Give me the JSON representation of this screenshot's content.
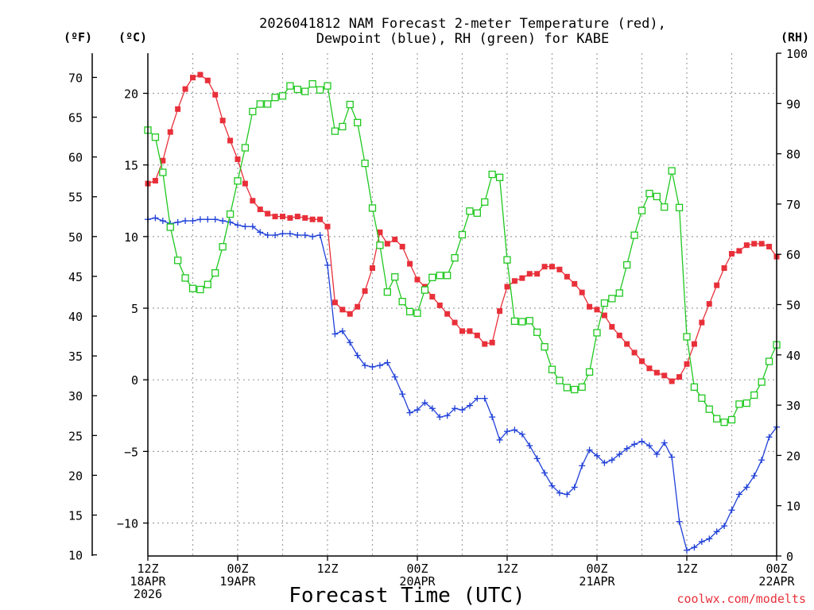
{
  "chart_data": {
    "type": "line",
    "title_line1": "2026041812 NAM Forecast 2-meter Temperature (red),",
    "title_line2": "Dewpoint (blue), RH (green) for KABE",
    "unit_f": "(ºF)",
    "unit_c": "(ºC)",
    "unit_rh": "(RH)",
    "xlabel": "Forecast Time (UTC)",
    "credit": "coolwx.com/modelts",
    "x_range_hours": [
      0,
      84
    ],
    "ylim_c": [
      -12.3,
      22.8
    ],
    "ylim_rh": [
      0,
      100
    ],
    "grid": true,
    "fahrenheit_ticks": [
      "10",
      "15",
      "20",
      "25",
      "30",
      "35",
      "40",
      "45",
      "50",
      "55",
      "60",
      "65",
      "70"
    ],
    "celsius_ticks": [
      "−10",
      "−5",
      "0",
      "5",
      "10",
      "15",
      "20"
    ],
    "rh_ticks": [
      "0",
      "10",
      "20",
      "30",
      "40",
      "50",
      "60",
      "70",
      "80",
      "90",
      "100"
    ],
    "x_ticks": [
      {
        "hour": 0,
        "lines": [
          "12Z",
          "18APR",
          "2026"
        ]
      },
      {
        "hour": 12,
        "lines": [
          "00Z",
          "19APR"
        ]
      },
      {
        "hour": 24,
        "lines": [
          "12Z"
        ]
      },
      {
        "hour": 36,
        "lines": [
          "00Z",
          "20APR"
        ]
      },
      {
        "hour": 48,
        "lines": [
          "12Z"
        ]
      },
      {
        "hour": 60,
        "lines": [
          "00Z",
          "21APR"
        ]
      },
      {
        "hour": 72,
        "lines": [
          "12Z"
        ]
      },
      {
        "hour": 84,
        "lines": [
          "00Z",
          "22APR"
        ]
      }
    ],
    "colors": {
      "temperature": "#e8303a",
      "dewpoint": "#2040d8",
      "rh": "#20c820",
      "grid": "#a0a0a0"
    },
    "series": [
      {
        "name": "Temperature (°C)",
        "key": "temperature",
        "marker": "filled-square",
        "x": [
          0,
          1,
          2,
          3,
          4,
          5,
          6,
          7,
          8,
          9,
          10,
          11,
          12,
          13,
          14,
          15,
          16,
          17,
          18,
          19,
          20,
          21,
          22,
          23,
          24,
          25,
          26,
          27,
          28,
          29,
          30,
          31,
          32,
          33,
          34,
          35,
          36,
          37,
          38,
          39,
          40,
          41,
          42,
          43,
          44,
          45,
          46,
          47,
          48,
          49,
          50,
          51,
          52,
          53,
          54,
          55,
          56,
          57,
          58,
          59,
          60,
          61,
          62,
          63,
          64,
          65,
          66,
          67,
          68,
          69,
          70,
          71,
          72,
          73,
          74,
          75,
          76,
          77,
          78,
          79,
          80,
          81,
          82,
          83,
          84
        ],
        "y": [
          13.7,
          13.9,
          15.3,
          17.3,
          18.9,
          20.3,
          21.1,
          21.3,
          20.9,
          19.9,
          18.1,
          16.7,
          15.4,
          13.7,
          12.5,
          11.9,
          11.6,
          11.4,
          11.4,
          11.3,
          11.4,
          11.3,
          11.2,
          11.2,
          10.7,
          5.4,
          4.9,
          4.6,
          5.1,
          6.2,
          7.8,
          10.3,
          9.5,
          9.8,
          9.3,
          8.1,
          7.0,
          6.5,
          5.8,
          5.2,
          4.6,
          4.0,
          3.4,
          3.4,
          3.1,
          2.5,
          2.6,
          4.8,
          6.5,
          6.9,
          7.1,
          7.4,
          7.4,
          7.9,
          7.9,
          7.7,
          7.2,
          6.7,
          6.1,
          5.1,
          4.9,
          4.5,
          3.7,
          3.1,
          2.5,
          1.9,
          1.3,
          0.8,
          0.5,
          0.3,
          -0.1,
          0.2,
          1.1,
          2.5,
          4.0,
          5.3,
          6.6,
          7.8,
          8.8,
          9.0,
          9.4,
          9.5,
          9.5,
          9.3,
          8.6
        ]
      },
      {
        "name": "Dewpoint (°C)",
        "key": "dewpoint",
        "marker": "plus",
        "x": [
          0,
          1,
          2,
          3,
          4,
          5,
          6,
          7,
          8,
          9,
          10,
          11,
          12,
          13,
          14,
          15,
          16,
          17,
          18,
          19,
          20,
          21,
          22,
          23,
          24,
          25,
          26,
          27,
          28,
          29,
          30,
          31,
          32,
          33,
          34,
          35,
          36,
          37,
          38,
          39,
          40,
          41,
          42,
          43,
          44,
          45,
          46,
          47,
          48,
          49,
          50,
          51,
          52,
          53,
          54,
          55,
          56,
          57,
          58,
          59,
          60,
          61,
          62,
          63,
          64,
          65,
          66,
          67,
          68,
          69,
          70,
          71,
          72,
          73,
          74,
          75,
          76,
          77,
          78,
          79,
          80,
          81,
          82,
          83,
          84
        ],
        "y": [
          11.2,
          11.3,
          11.1,
          10.9,
          11.0,
          11.1,
          11.1,
          11.2,
          11.2,
          11.2,
          11.1,
          11.0,
          10.8,
          10.7,
          10.7,
          10.3,
          10.1,
          10.1,
          10.2,
          10.2,
          10.1,
          10.1,
          10.0,
          10.1,
          8.0,
          3.2,
          3.4,
          2.6,
          1.7,
          1.0,
          0.9,
          1.0,
          1.2,
          0.2,
          -1.0,
          -2.3,
          -2.1,
          -1.6,
          -2.0,
          -2.6,
          -2.5,
          -2.0,
          -2.1,
          -1.8,
          -1.3,
          -1.3,
          -2.6,
          -4.2,
          -3.6,
          -3.5,
          -3.8,
          -4.6,
          -5.5,
          -6.5,
          -7.4,
          -7.9,
          -8.0,
          -7.5,
          -6.0,
          -4.9,
          -5.3,
          -5.8,
          -5.6,
          -5.2,
          -4.8,
          -4.5,
          -4.3,
          -4.6,
          -5.2,
          -4.4,
          -5.4,
          -9.9,
          -11.9,
          -11.7,
          -11.3,
          -11.1,
          -10.6,
          -10.2,
          -9.1,
          -8.0,
          -7.5,
          -6.7,
          -5.6,
          -4.0,
          -3.3
        ]
      },
      {
        "name": "RH (%)",
        "key": "rh",
        "marker": "open-square",
        "x": [
          0,
          1,
          2,
          3,
          4,
          5,
          6,
          7,
          8,
          9,
          10,
          11,
          12,
          13,
          14,
          15,
          16,
          17,
          18,
          19,
          20,
          21,
          22,
          23,
          24,
          25,
          26,
          27,
          28,
          29,
          30,
          31,
          32,
          33,
          34,
          35,
          36,
          37,
          38,
          39,
          40,
          41,
          42,
          43,
          44,
          45,
          46,
          47,
          48,
          49,
          50,
          51,
          52,
          53,
          54,
          55,
          56,
          57,
          58,
          59,
          60,
          61,
          62,
          63,
          64,
          65,
          66,
          67,
          68,
          69,
          70,
          71,
          72,
          73,
          74,
          75,
          76,
          77,
          78,
          79,
          80,
          81,
          82,
          83,
          84
        ],
        "y": [
          84.7,
          83.3,
          76.3,
          65.4,
          58.8,
          55.3,
          53.2,
          53.0,
          54.0,
          56.3,
          61.5,
          68.0,
          74.6,
          81.2,
          88.4,
          89.9,
          89.9,
          91.2,
          91.5,
          93.5,
          92.8,
          92.4,
          93.9,
          92.7,
          93.5,
          84.5,
          85.4,
          89.8,
          86.2,
          78.1,
          69.2,
          61.8,
          52.5,
          55.5,
          50.6,
          48.6,
          48.3,
          52.9,
          55.4,
          55.8,
          55.8,
          59.3,
          63.9,
          68.6,
          68.2,
          70.4,
          75.9,
          75.3,
          58.9,
          46.7,
          46.6,
          46.8,
          44.5,
          41.6,
          37.1,
          34.9,
          33.5,
          33.1,
          33.6,
          36.6,
          44.4,
          50.3,
          51.2,
          52.3,
          57.9,
          63.8,
          68.7,
          72.1,
          71.5,
          69.4,
          76.6,
          69.3,
          43.6,
          33.6,
          31.4,
          29.2,
          27.3,
          26.6,
          27.1,
          30.2,
          30.4,
          32.0,
          34.6,
          38.7,
          42.0
        ]
      }
    ]
  }
}
